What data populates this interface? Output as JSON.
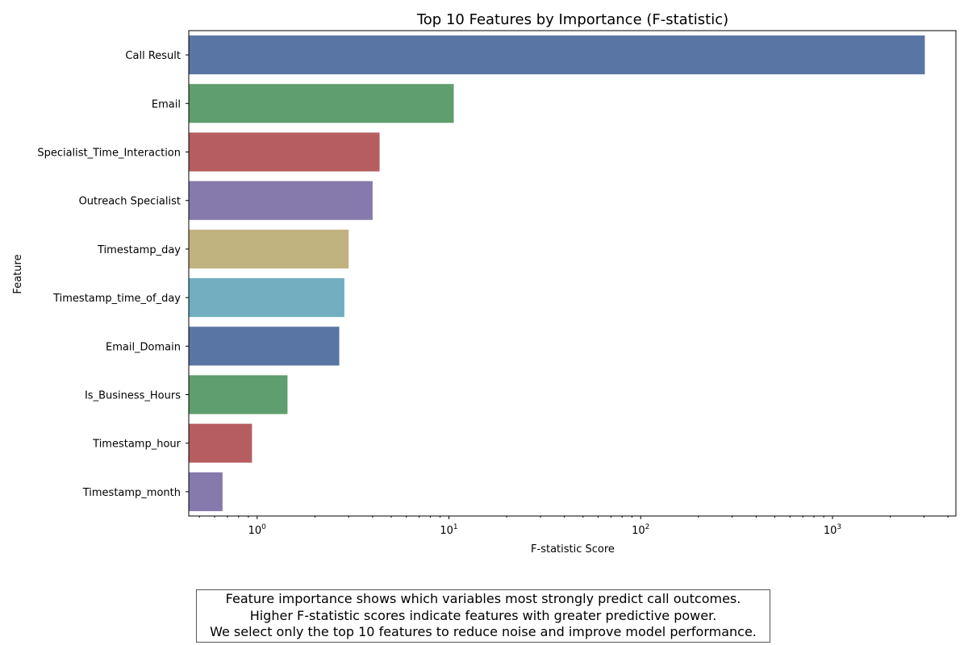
{
  "chart_data": {
    "type": "bar",
    "orientation": "horizontal",
    "title": "Top 10 Features by Importance (F-statistic)",
    "xlabel": "F-statistic Score",
    "ylabel": "Feature",
    "x_scale": "log",
    "xlim": [
      0.44,
      4400
    ],
    "x_ticks": [
      {
        "value": 1,
        "base": "10",
        "exp": "0"
      },
      {
        "value": 10,
        "base": "10",
        "exp": "1"
      },
      {
        "value": 100,
        "base": "10",
        "exp": "2"
      },
      {
        "value": 1000,
        "base": "10",
        "exp": "3"
      }
    ],
    "categories": [
      "Call Result",
      "Email",
      "Specialist_Time_Interaction",
      "Outreach Specialist",
      "Timestamp_day",
      "Timestamp_time_of_day",
      "Email_Domain",
      "Is_Business_Hours",
      "Timestamp_hour",
      "Timestamp_month"
    ],
    "values": [
      3030,
      10.6,
      4.35,
      4.0,
      3.0,
      2.85,
      2.68,
      1.44,
      0.94,
      0.66
    ],
    "colors": [
      "#5875a4",
      "#5f9e6e",
      "#b55d60",
      "#857aab",
      "#c1b37f",
      "#71aec0",
      "#5875a4",
      "#5f9e6e",
      "#b55d60",
      "#857aab"
    ],
    "grid": false
  },
  "caption": {
    "lines": [
      "Feature importance shows which variables most strongly predict call outcomes.",
      "Higher F-statistic scores indicate features with greater predictive power.",
      "We select only the top 10 features to reduce noise and improve model performance."
    ]
  }
}
